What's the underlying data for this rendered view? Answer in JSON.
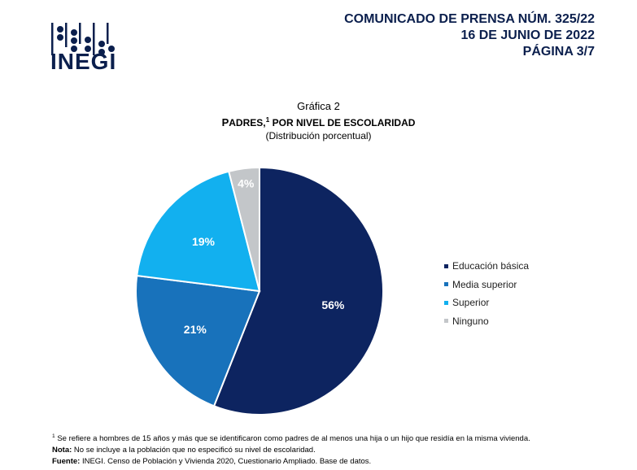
{
  "header": {
    "logo_text": "INEGI",
    "press_line1": "COMUNICADO DE PRENSA NÚM. 325/22",
    "press_line2": "16 DE JUNIO DE 2022",
    "press_line3": "PÁGINA 3/7"
  },
  "chart_data": {
    "type": "pie",
    "number_label": "Gráfica 2",
    "title_first_letter": "P",
    "title_rest_1": "ADRES,",
    "title_sup": "1",
    "title_rest_2": " POR NIVEL DE ESCOLARIDAD",
    "subtitle": "(Distribución porcentual)",
    "legend_position": "right",
    "slices": [
      {
        "label": "Educación básica",
        "value": 56,
        "value_label": "56%",
        "color": "#0d2460",
        "text_color": "#ffffff"
      },
      {
        "label": "Media superior",
        "value": 21,
        "value_label": "21%",
        "color": "#1872bb",
        "text_color": "#ffffff"
      },
      {
        "label": "Superior",
        "value": 19,
        "value_label": "19%",
        "color": "#12b0ef",
        "text_color": "#ffffff"
      },
      {
        "label": "Ninguno",
        "value": 4,
        "value_label": "4%",
        "color": "#c3c6c9",
        "text_color": "#ffffff"
      }
    ]
  },
  "notes": {
    "footnote_sup": "1",
    "footnote_text": " Se refiere a hombres de 15 años y más que se identificaron como padres de al menos una hija o un hijo que residía en la misma vivienda.",
    "nota_label": "Nota:",
    "nota_text": " No se incluye a la población que no especificó su nivel de escolaridad.",
    "fuente_label": "Fuente:",
    "fuente_text": " INEGI. Censo de Población y Vivienda 2020, Cuestionario Ampliado. Base de datos."
  }
}
